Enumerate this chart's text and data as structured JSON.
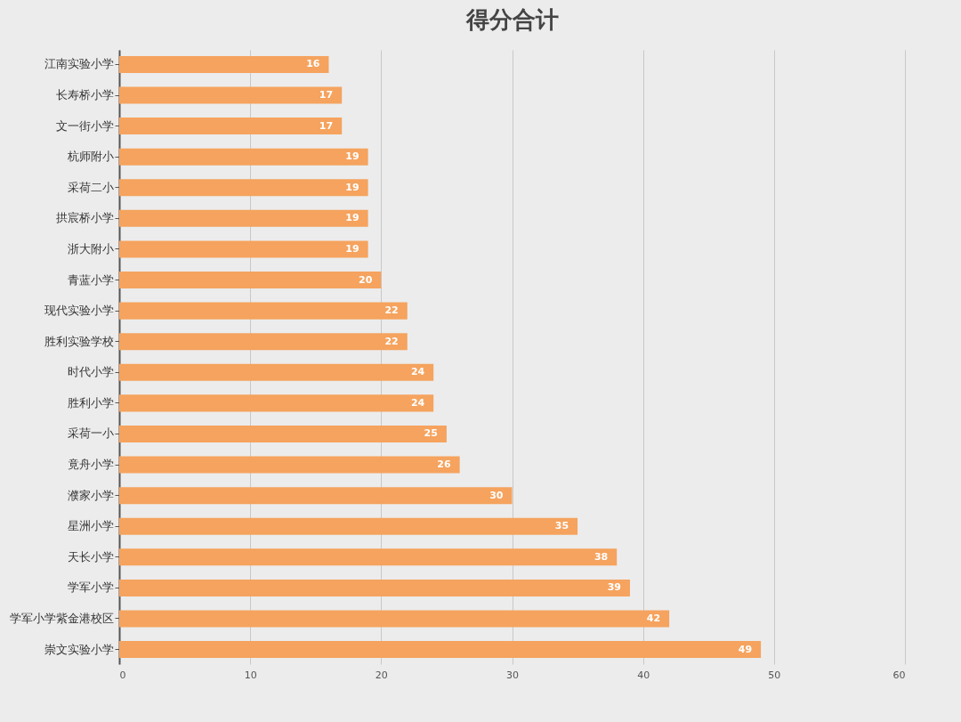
{
  "chart_data": {
    "type": "bar",
    "orientation": "horizontal",
    "title": "得分合计",
    "categories": [
      "江南实验小学",
      "长寿桥小学",
      "文一街小学",
      "杭师附小",
      "采荷二小",
      "拱宸桥小学",
      "浙大附小",
      "青蓝小学",
      "现代实验小学",
      "胜利实验学校",
      "时代小学",
      "胜利小学",
      "采荷一小",
      "竟舟小学",
      "濮家小学",
      "星洲小学",
      "天长小学",
      "学军小学",
      "学军小学紫金港校区",
      "崇文实验小学"
    ],
    "values": [
      16,
      17,
      17,
      19,
      19,
      19,
      19,
      20,
      22,
      22,
      24,
      24,
      25,
      26,
      30,
      35,
      38,
      39,
      42,
      49
    ],
    "color": "#f5a35e",
    "xlim": [
      0,
      60
    ],
    "xticks": [
      0,
      10,
      20,
      30,
      40,
      50,
      60
    ],
    "grid": "x",
    "data_labels": true
  }
}
